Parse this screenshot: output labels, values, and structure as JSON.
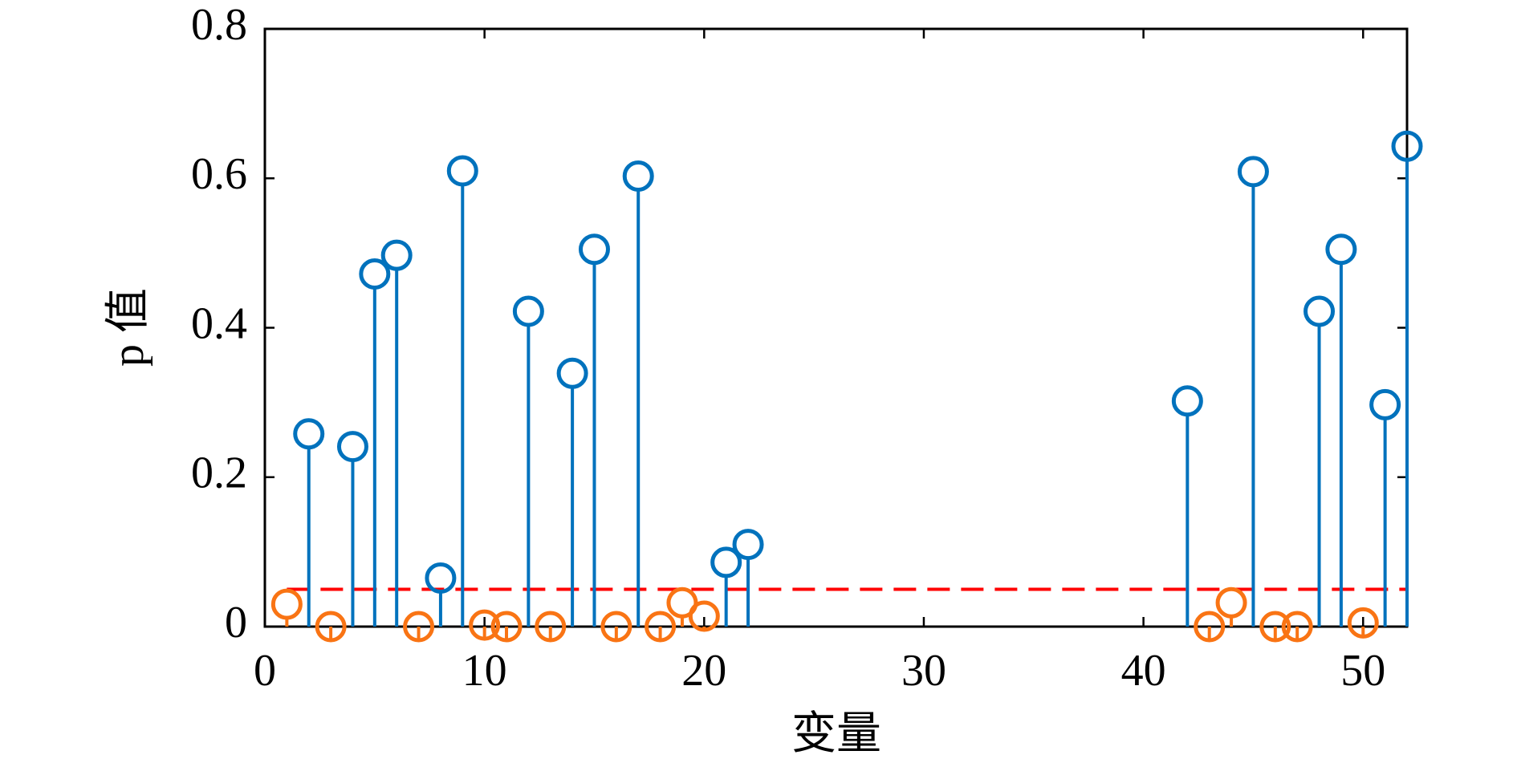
{
  "chart_data": {
    "type": "stem",
    "xlabel": "变量",
    "ylabel": "p 值",
    "xlim": [
      0,
      52
    ],
    "ylim": [
      0,
      0.8
    ],
    "xticks": [
      0,
      10,
      20,
      30,
      40,
      50
    ],
    "yticks": [
      0,
      0.2,
      0.4,
      0.6,
      0.8
    ],
    "threshold": 0.05,
    "threshold_color": "#ff0000",
    "series": [
      {
        "color": "#0072bd",
        "x": [
          2,
          4,
          5,
          6,
          8,
          9,
          12,
          14,
          15,
          17,
          21,
          22,
          42,
          45,
          48,
          49,
          51,
          52
        ],
        "values": [
          0.258,
          0.241,
          0.472,
          0.497,
          0.065,
          0.61,
          0.422,
          0.339,
          0.505,
          0.603,
          0.086,
          0.11,
          0.302,
          0.609,
          0.422,
          0.505,
          0.297,
          0.643
        ]
      },
      {
        "color": "#f97414",
        "x": [
          1,
          3,
          7,
          10,
          11,
          13,
          16,
          18,
          19,
          20,
          43,
          44,
          46,
          47,
          50
        ],
        "values": [
          0.03,
          0.0,
          0.0,
          0.002,
          0.0,
          0.0,
          0.0,
          0.0,
          0.032,
          0.014,
          0.0,
          0.032,
          0.0,
          0.0,
          0.005
        ]
      }
    ]
  }
}
